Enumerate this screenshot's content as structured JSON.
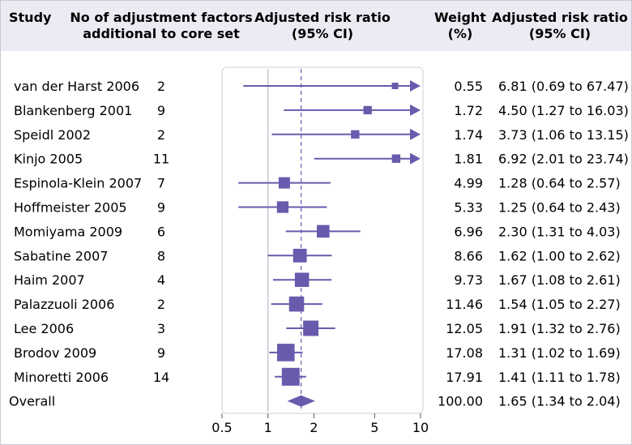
{
  "colors": {
    "accent": "#6a5aad",
    "header_bg": "#ecebf3",
    "grid": "#bdbcc9",
    "dash": "#6a5aad"
  },
  "headers": {
    "study": "Study",
    "factors_line1": "No of adjustment factors",
    "factors_line2": "additional to core set",
    "rr_line1": "Adjusted risk ratio",
    "rr_line2": "(95% CI)",
    "weight_line1": "Weight",
    "weight_line2": "(%)",
    "rr_text_line1": "Adjusted risk ratio",
    "rr_text_line2": "(95% CI)"
  },
  "chart_data": {
    "type": "forest",
    "xscale": "log",
    "xlim": [
      0.5,
      10
    ],
    "xticks": [
      0.5,
      1,
      2,
      5,
      10
    ],
    "xtick_labels": [
      "0.5",
      "1",
      "2",
      "5",
      "10"
    ],
    "null_line": 1,
    "pooled_line": 1.65,
    "studies": [
      {
        "study": "van der Harst 2006",
        "factors": "2",
        "rr": 6.81,
        "lo": 0.69,
        "hi": 67.47,
        "weight": "0.55",
        "ci_text": "6.81 (0.69 to 67.47)"
      },
      {
        "study": "Blankenberg 2001",
        "factors": "9",
        "rr": 4.5,
        "lo": 1.27,
        "hi": 16.03,
        "weight": "1.72",
        "ci_text": "4.50 (1.27 to 16.03)"
      },
      {
        "study": "Speidl 2002",
        "factors": "2",
        "rr": 3.73,
        "lo": 1.06,
        "hi": 13.15,
        "weight": "1.74",
        "ci_text": "3.73 (1.06 to 13.15)"
      },
      {
        "study": "Kinjo 2005",
        "factors": "11",
        "rr": 6.92,
        "lo": 2.01,
        "hi": 23.74,
        "weight": "1.81",
        "ci_text": "6.92 (2.01 to 23.74)"
      },
      {
        "study": "Espinola-Klein 2007",
        "factors": "7",
        "rr": 1.28,
        "lo": 0.64,
        "hi": 2.57,
        "weight": "4.99",
        "ci_text": "1.28 (0.64 to 2.57)"
      },
      {
        "study": "Hoffmeister 2005",
        "factors": "9",
        "rr": 1.25,
        "lo": 0.64,
        "hi": 2.43,
        "weight": "5.33",
        "ci_text": "1.25 (0.64 to 2.43)"
      },
      {
        "study": "Momiyama 2009",
        "factors": "6",
        "rr": 2.3,
        "lo": 1.31,
        "hi": 4.03,
        "weight": "6.96",
        "ci_text": "2.30 (1.31 to 4.03)"
      },
      {
        "study": "Sabatine 2007",
        "factors": "8",
        "rr": 1.62,
        "lo": 1.0,
        "hi": 2.62,
        "weight": "8.66",
        "ci_text": "1.62 (1.00 to 2.62)"
      },
      {
        "study": "Haim 2007",
        "factors": "4",
        "rr": 1.67,
        "lo": 1.08,
        "hi": 2.61,
        "weight": "9.73",
        "ci_text": "1.67 (1.08 to 2.61)"
      },
      {
        "study": "Palazzuoli 2006",
        "factors": "2",
        "rr": 1.54,
        "lo": 1.05,
        "hi": 2.27,
        "weight": "11.46",
        "ci_text": "1.54 (1.05 to 2.27)"
      },
      {
        "study": "Lee 2006",
        "factors": "3",
        "rr": 1.91,
        "lo": 1.32,
        "hi": 2.76,
        "weight": "12.05",
        "ci_text": "1.91 (1.32 to 2.76)"
      },
      {
        "study": "Brodov 2009",
        "factors": "9",
        "rr": 1.31,
        "lo": 1.02,
        "hi": 1.69,
        "weight": "17.08",
        "ci_text": "1.31 (1.02 to 1.69)"
      },
      {
        "study": "Minoretti 2006",
        "factors": "14",
        "rr": 1.41,
        "lo": 1.11,
        "hi": 1.78,
        "weight": "17.91",
        "ci_text": "1.41 (1.11 to 1.78)"
      }
    ],
    "overall": {
      "label": "Overall",
      "rr": 1.65,
      "lo": 1.34,
      "hi": 2.04,
      "weight": "100.00",
      "ci_text": "1.65 (1.34 to 2.04)"
    }
  }
}
